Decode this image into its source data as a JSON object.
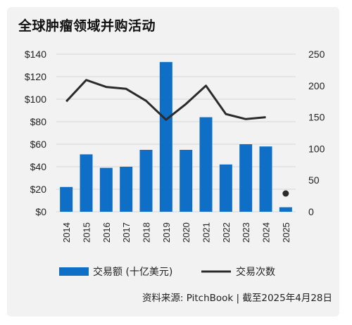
{
  "title": "全球肿瘤领域并购活动",
  "source": "资料来源: PitchBook | 截至2025年4月28日",
  "colors": {
    "bar": "#0f6fc6",
    "line": "#2b2b2b",
    "grid": "#d6d6d6",
    "card": "#f2f2f2"
  },
  "chart_data": {
    "type": "bar",
    "categories": [
      "2014",
      "2015",
      "2016",
      "2017",
      "2018",
      "2019",
      "2020",
      "2021",
      "2022",
      "2023",
      "2024",
      "2025"
    ],
    "series": [
      {
        "name": "交易额 (十亿美元)",
        "type": "bar",
        "axis": "left",
        "values": [
          22,
          51,
          39,
          40,
          55,
          133,
          55,
          84,
          42,
          60,
          58,
          4
        ]
      },
      {
        "name": "交易次数",
        "type": "line",
        "axis": "right",
        "values": [
          175,
          209,
          198,
          195,
          176,
          146,
          171,
          200,
          155,
          147,
          150,
          29
        ],
        "line_until_index": 10,
        "point_only_index": 11
      }
    ],
    "y_left": {
      "range": [
        0,
        140
      ],
      "ticks": [
        "$0",
        "$20",
        "$40",
        "$60",
        "$80",
        "$100",
        "$120",
        "$140"
      ]
    },
    "y_right": {
      "range": [
        0,
        250
      ],
      "ticks": [
        "0",
        "50",
        "100",
        "150",
        "200",
        "250"
      ]
    },
    "grid": "horizontal",
    "legend_position": "bottom"
  }
}
